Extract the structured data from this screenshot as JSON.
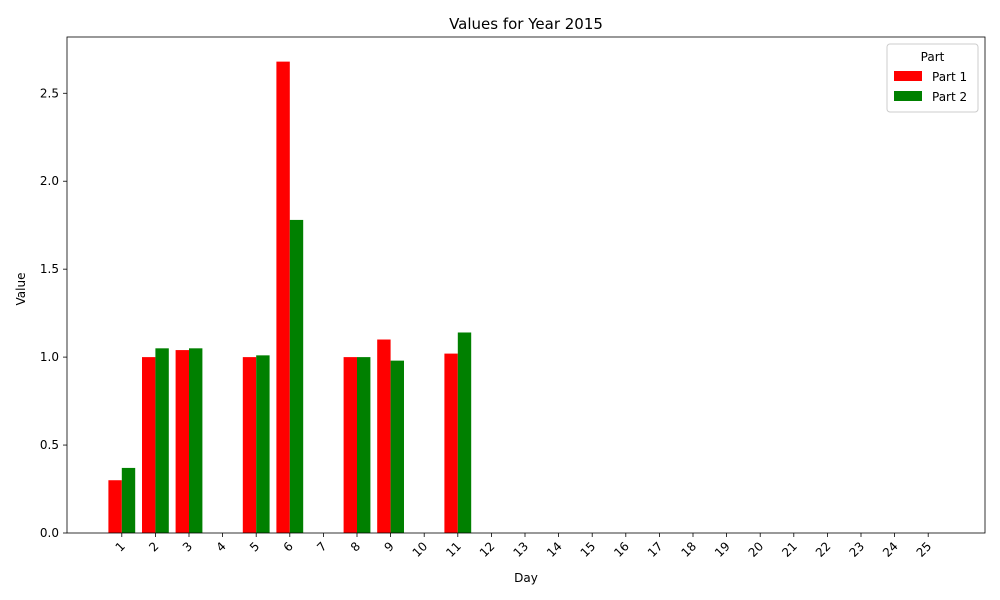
{
  "chart_data": {
    "type": "bar",
    "title": "Values for Year 2015",
    "xlabel": "Day",
    "ylabel": "Value",
    "categories": [
      "1",
      "2",
      "3",
      "4",
      "5",
      "6",
      "7",
      "8",
      "9",
      "10",
      "11",
      "12",
      "13",
      "14",
      "15",
      "16",
      "17",
      "18",
      "19",
      "20",
      "21",
      "22",
      "23",
      "24",
      "25"
    ],
    "series": [
      {
        "name": "Part 1",
        "color": "#ff0000",
        "values": [
          0.3,
          1.0,
          1.04,
          0,
          1.0,
          2.68,
          0,
          1.0,
          1.1,
          0,
          1.02,
          0,
          0,
          0,
          0,
          0,
          0,
          0,
          0,
          0,
          0,
          0,
          0,
          0,
          0
        ]
      },
      {
        "name": "Part 2",
        "color": "#008000",
        "values": [
          0.37,
          1.05,
          1.05,
          0,
          1.01,
          1.78,
          0,
          1.0,
          0.98,
          0,
          1.14,
          0,
          0,
          0,
          0,
          0,
          0,
          0,
          0,
          0,
          0,
          0,
          0,
          0,
          0
        ]
      }
    ],
    "ylim": [
      0,
      2.82
    ],
    "yticks": [
      "0.0",
      "0.5",
      "1.0",
      "1.5",
      "2.0",
      "2.5"
    ],
    "legend": {
      "title": "Part",
      "position": "top-right"
    },
    "grid": false
  }
}
